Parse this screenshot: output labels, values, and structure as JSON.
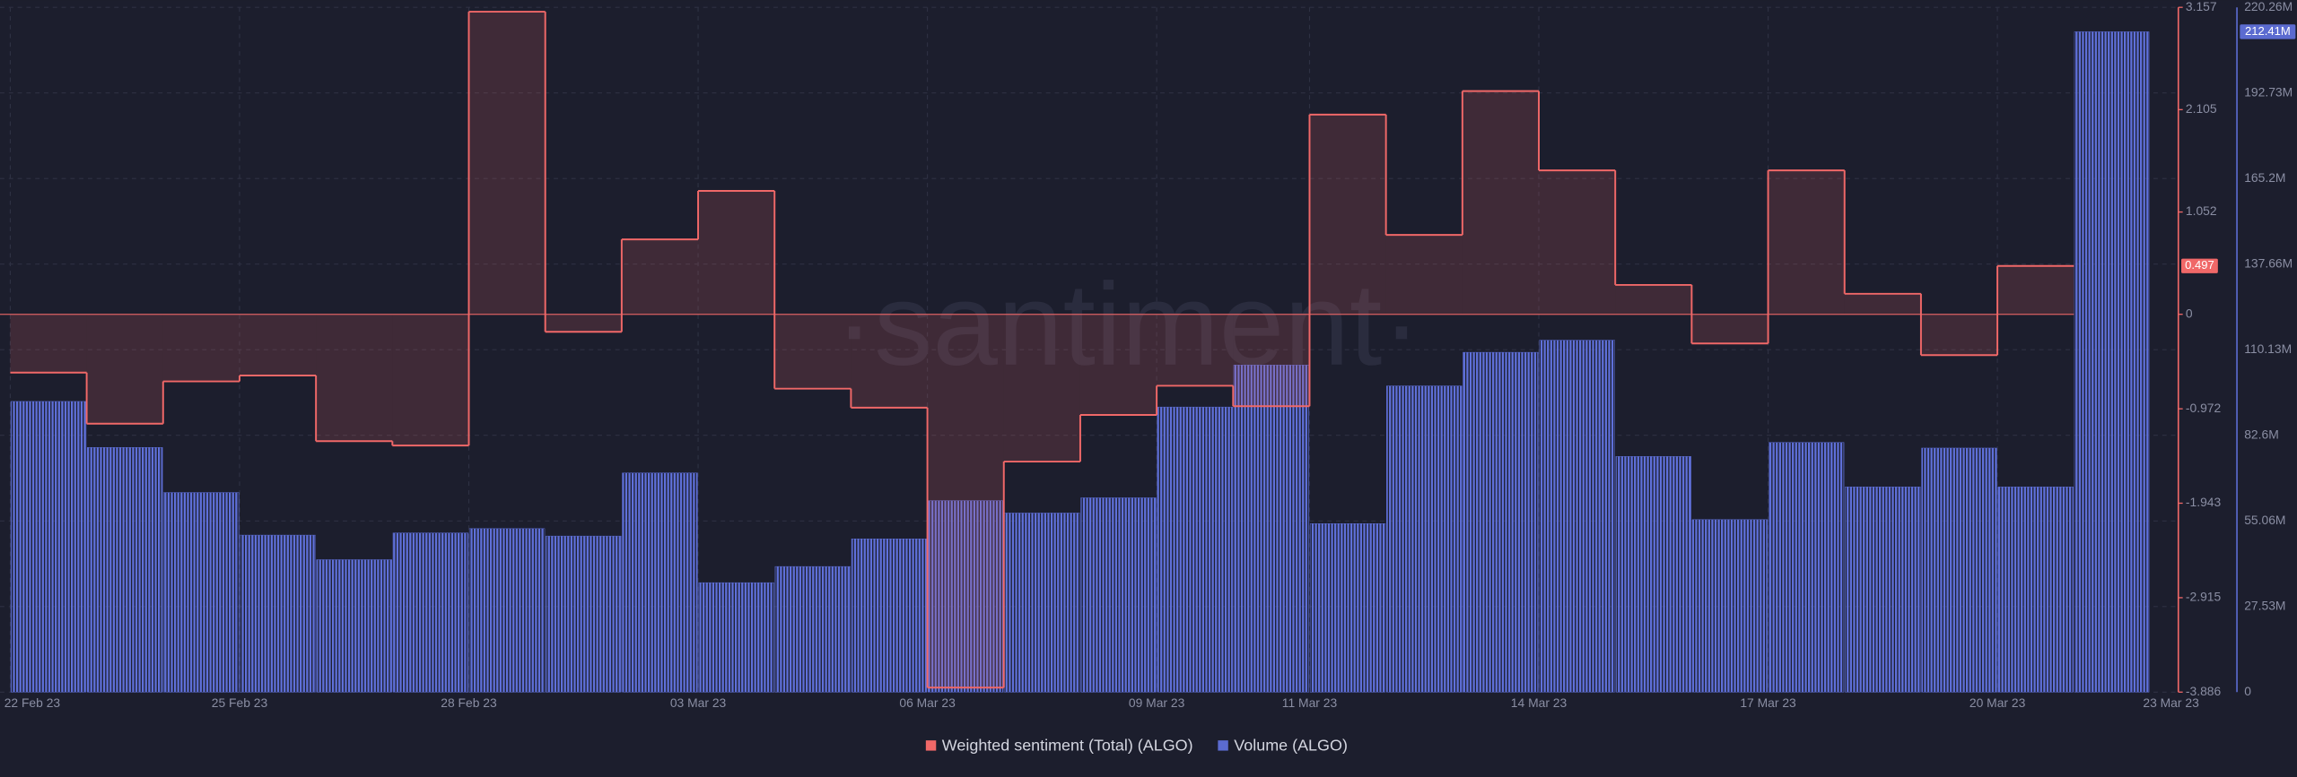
{
  "chart_data": {
    "type": "combo",
    "watermark": "·santiment·",
    "x": [
      "2023-02-22",
      "2023-02-23",
      "2023-02-24",
      "2023-02-25",
      "2023-02-26",
      "2023-02-27",
      "2023-02-28",
      "2023-03-01",
      "2023-03-02",
      "2023-03-03",
      "2023-03-04",
      "2023-03-05",
      "2023-03-06",
      "2023-03-07",
      "2023-03-08",
      "2023-03-09",
      "2023-03-10",
      "2023-03-11",
      "2023-03-12",
      "2023-03-13",
      "2023-03-14",
      "2023-03-15",
      "2023-03-16",
      "2023-03-17",
      "2023-03-18",
      "2023-03-19",
      "2023-03-20",
      "2023-03-21"
    ],
    "xlim": [
      "2023-02-22",
      "2023-03-23"
    ],
    "xticks": [
      {
        "value": "2023-02-22",
        "label": "22 Feb 23"
      },
      {
        "value": "2023-02-25",
        "label": "25 Feb 23"
      },
      {
        "value": "2023-02-28",
        "label": "28 Feb 23"
      },
      {
        "value": "2023-03-03",
        "label": "03 Mar 23"
      },
      {
        "value": "2023-03-06",
        "label": "06 Mar 23"
      },
      {
        "value": "2023-03-09",
        "label": "09 Mar 23"
      },
      {
        "value": "2023-03-11",
        "label": "11 Mar 23"
      },
      {
        "value": "2023-03-14",
        "label": "14 Mar 23"
      },
      {
        "value": "2023-03-17",
        "label": "17 Mar 23"
      },
      {
        "value": "2023-03-20",
        "label": "20 Mar 23"
      },
      {
        "value": "2023-03-23",
        "label": "23 Mar 23"
      }
    ],
    "ylim": [
      -3.886,
      3.157
    ],
    "yticks": [
      3.157,
      2.105,
      1.052,
      0,
      -0.972,
      -1.943,
      -2.915,
      -3.886
    ],
    "y2lim": [
      0,
      220.26
    ],
    "y2ticks": [
      0,
      {
        "value": 27.53,
        "label": "27.53M"
      },
      {
        "value": 55.06,
        "label": "55.06M"
      },
      {
        "value": 82.6,
        "label": "82.6M"
      },
      {
        "value": 110.13,
        "label": "110.13M"
      },
      {
        "value": 137.66,
        "label": "137.66M"
      },
      {
        "value": 165.2,
        "label": "165.2M"
      },
      {
        "value": 192.73,
        "label": "192.73M"
      },
      {
        "value": 220.26,
        "label": "220.26M"
      }
    ],
    "grid": true,
    "legend": "bottom",
    "series": [
      {
        "name": "Weighted sentiment (Total) (ALGO)",
        "type": "line",
        "color": "#f06868",
        "values": [
          -0.6,
          -1.125,
          -0.69,
          -0.63,
          -1.305,
          -1.35,
          3.112,
          -0.18,
          0.77,
          1.269,
          -0.765,
          -0.96,
          -3.84,
          -1.515,
          -1.035,
          -0.735,
          -0.945,
          2.054,
          0.816,
          2.296,
          1.48,
          0.302,
          -0.3,
          1.48,
          0.211,
          -0.42,
          0.497,
          null
        ]
      },
      {
        "name": "Volume (ALGO)",
        "type": "bar",
        "axis": "y2",
        "color": "#5b6bd0",
        "values": [
          93.5,
          78.7,
          64.2,
          50.5,
          42.6,
          51.2,
          52.6,
          50.2,
          70.5,
          35.2,
          40.4,
          49.3,
          61.6,
          57.6,
          62.5,
          91.7,
          105.2,
          54.2,
          98.5,
          109.3,
          113.2,
          75.8,
          55.5,
          80.3,
          66.0,
          78.5,
          66.0,
          212.41
        ],
        "value_labels": [
          null,
          null,
          null,
          null,
          null,
          null,
          null,
          null,
          null,
          null,
          null,
          null,
          null,
          null,
          null,
          null,
          null,
          null,
          null,
          null,
          null,
          null,
          null,
          null,
          null,
          null,
          null,
          "212.41M"
        ]
      }
    ]
  }
}
